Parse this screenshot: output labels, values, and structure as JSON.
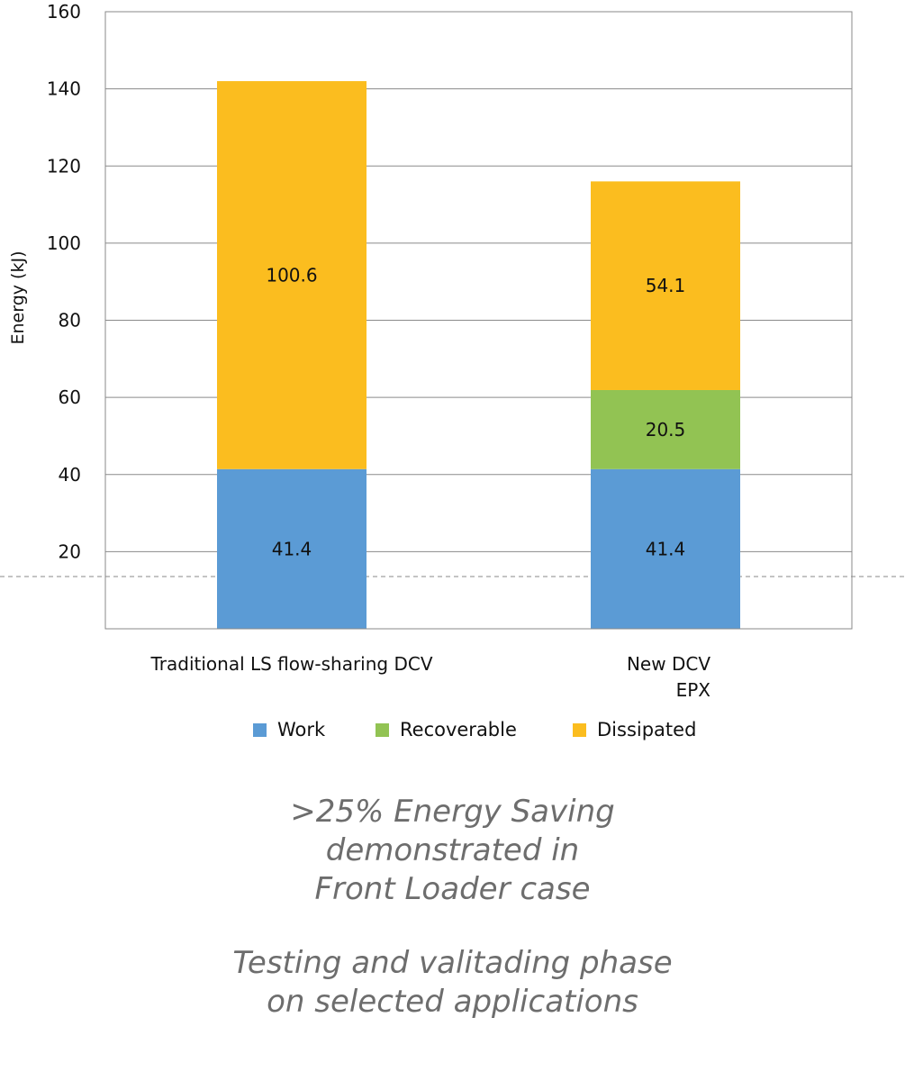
{
  "chart_data": {
    "type": "bar",
    "stacked": true,
    "categories": [
      "Traditional LS flow-sharing DCV",
      "New DCV\nEPX"
    ],
    "series": [
      {
        "name": "Work",
        "color": "#5b9bd5",
        "values": [
          41.4,
          41.4
        ]
      },
      {
        "name": "Recoverable",
        "color": "#92c353",
        "values": [
          0,
          20.5
        ]
      },
      {
        "name": "Dissipated",
        "color": "#fbbd1f",
        "values": [
          100.6,
          54.1
        ]
      }
    ],
    "ylabel": "Energy (kJ)",
    "ylim": [
      0,
      160
    ],
    "yticks": [
      20,
      40,
      60,
      80,
      100,
      120,
      140,
      160
    ],
    "grid": true,
    "legend": "bottom"
  },
  "notes": {
    "line1": ">25% Energy Saving",
    "line2": "demonstrated in",
    "line3": "Front Loader case",
    "line4": "Testing and valitading phase",
    "line5": "on selected applications"
  }
}
